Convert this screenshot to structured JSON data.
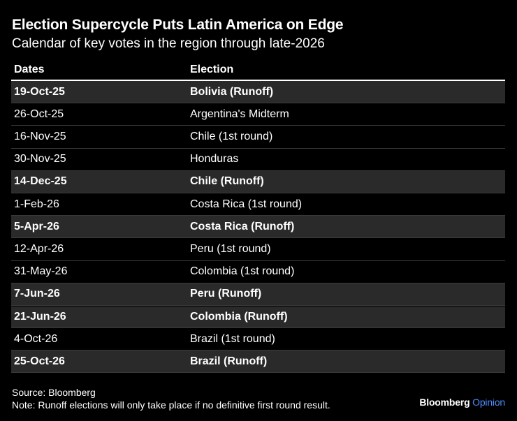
{
  "title": "Election Supercycle Puts Latin America on Edge",
  "subtitle": "Calendar of key votes in the region through late-2026",
  "chart_data": {
    "type": "table",
    "columns": [
      "Dates",
      "Election"
    ],
    "rows": [
      {
        "date": "19-Oct-25",
        "election": "Bolivia (Runoff)",
        "runoff": true
      },
      {
        "date": "26-Oct-25",
        "election": "Argentina's Midterm",
        "runoff": false
      },
      {
        "date": "16-Nov-25",
        "election": "Chile (1st round)",
        "runoff": false
      },
      {
        "date": "30-Nov-25",
        "election": "Honduras",
        "runoff": false
      },
      {
        "date": "14-Dec-25",
        "election": "Chile (Runoff)",
        "runoff": true
      },
      {
        "date": "1-Feb-26",
        "election": "Costa Rica (1st round)",
        "runoff": false
      },
      {
        "date": "5-Apr-26",
        "election": "Costa Rica (Runoff)",
        "runoff": true
      },
      {
        "date": "12-Apr-26",
        "election": "Peru (1st round)",
        "runoff": false
      },
      {
        "date": "31-May-26",
        "election": "Colombia (1st round)",
        "runoff": false
      },
      {
        "date": "7-Jun-26",
        "election": "Peru (Runoff)",
        "runoff": true
      },
      {
        "date": "21-Jun-26",
        "election": "Colombia (Runoff)",
        "runoff": true
      },
      {
        "date": "4-Oct-26",
        "election": "Brazil (1st round)",
        "runoff": false
      },
      {
        "date": "25-Oct-26",
        "election": "Brazil (Runoff)",
        "runoff": true
      }
    ]
  },
  "footer": {
    "source": "Source: Bloomberg",
    "note": "Note: Runoff elections will only take place if no definitive first round result."
  },
  "brand": {
    "name": "Bloomberg",
    "sub": "Opinion",
    "accent_color": "#4c8dff"
  }
}
